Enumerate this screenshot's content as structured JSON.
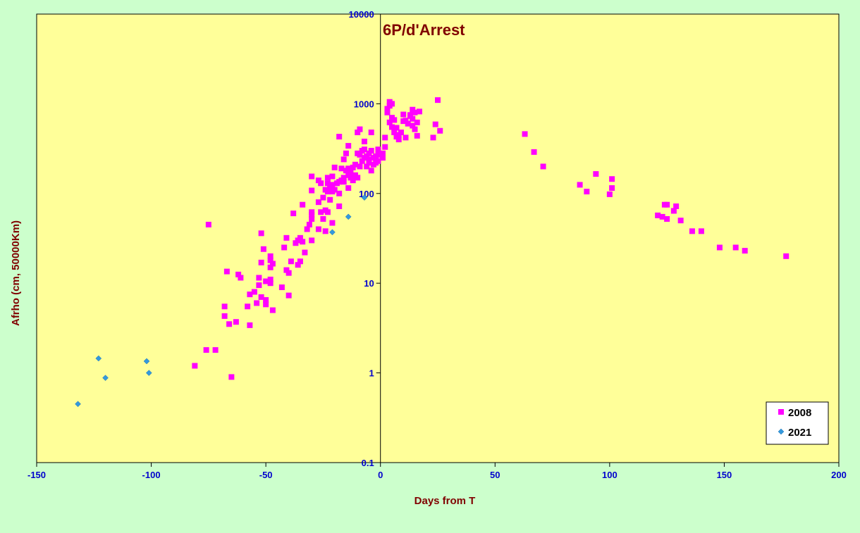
{
  "chart_data": {
    "type": "scatter",
    "title": "6P/d'Arrest",
    "xlabel": "Days from T",
    "ylabel": "Afrho (cm, 50000Km)",
    "xlim": [
      -150,
      200
    ],
    "ylim": [
      0.1,
      10000
    ],
    "yscale": "log",
    "x_ticks": [
      -150,
      -100,
      -50,
      0,
      50,
      100,
      150,
      200
    ],
    "x_tick_labels": [
      "-150",
      "-100",
      "-50",
      "0",
      "50",
      "100",
      "150",
      "200"
    ],
    "y_ticks": [
      0.1,
      1,
      10,
      100,
      1000,
      10000
    ],
    "y_tick_labels": [
      "0.1",
      "1",
      "10",
      "100",
      "1000",
      "10000"
    ],
    "grid": false,
    "legend_position": "bottom-right",
    "background_color": "#ffff99",
    "outer_background_color": "#ccffcc",
    "series": [
      {
        "name": "2008",
        "marker": "square",
        "color": "#ff00ff",
        "points": [
          [
            -81,
            1.2
          ],
          [
            -76,
            1.8
          ],
          [
            -72,
            1.8
          ],
          [
            -75,
            45
          ],
          [
            -68,
            5.5
          ],
          [
            -68,
            4.3
          ],
          [
            -67,
            13.5
          ],
          [
            -66,
            3.5
          ],
          [
            -65,
            0.9
          ],
          [
            -63,
            3.7
          ],
          [
            -62,
            12.5
          ],
          [
            -61,
            11.5
          ],
          [
            -58,
            5.5
          ],
          [
            -57,
            3.4
          ],
          [
            -57,
            7.5
          ],
          [
            -55,
            8
          ],
          [
            -54,
            6
          ],
          [
            -53,
            9.5
          ],
          [
            -53,
            11.5
          ],
          [
            -52,
            7
          ],
          [
            -52,
            17
          ],
          [
            -52,
            36
          ],
          [
            -51,
            24
          ],
          [
            -50,
            6.5
          ],
          [
            -50,
            5.8
          ],
          [
            -50,
            10.5
          ],
          [
            -48,
            10
          ],
          [
            -48,
            11
          ],
          [
            -48,
            15
          ],
          [
            -48,
            18
          ],
          [
            -48,
            20
          ],
          [
            -47,
            5
          ],
          [
            -47,
            16.5
          ],
          [
            -43,
            9
          ],
          [
            -42,
            25
          ],
          [
            -41,
            14
          ],
          [
            -41,
            32
          ],
          [
            -40,
            7.3
          ],
          [
            -40,
            13
          ],
          [
            -39,
            17.5
          ],
          [
            -38,
            60
          ],
          [
            -37,
            28
          ],
          [
            -36,
            30
          ],
          [
            -36,
            16
          ],
          [
            -35,
            32
          ],
          [
            -35,
            17.5
          ],
          [
            -34,
            75
          ],
          [
            -34,
            29
          ],
          [
            -33,
            22
          ],
          [
            -32,
            40
          ],
          [
            -31,
            45
          ],
          [
            -30,
            30
          ],
          [
            -30,
            52
          ],
          [
            -30,
            58
          ],
          [
            -30,
            62
          ],
          [
            -30,
            108
          ],
          [
            -30,
            155
          ],
          [
            -27,
            40
          ],
          [
            -27,
            80
          ],
          [
            -27,
            140
          ],
          [
            -26,
            130
          ],
          [
            -26,
            62
          ],
          [
            -25,
            52
          ],
          [
            -25,
            90
          ],
          [
            -24,
            38
          ],
          [
            -24,
            65
          ],
          [
            -24,
            110
          ],
          [
            -23,
            130
          ],
          [
            -23,
            150
          ],
          [
            -23,
            62
          ],
          [
            -23,
            105
          ],
          [
            -22,
            115
          ],
          [
            -22,
            120
          ],
          [
            -22,
            85
          ],
          [
            -21,
            155
          ],
          [
            -21,
            105
          ],
          [
            -21,
            125
          ],
          [
            -21,
            47
          ],
          [
            -20,
            195
          ],
          [
            -20,
            110
          ],
          [
            -19,
            130
          ],
          [
            -18,
            135
          ],
          [
            -18,
            100
          ],
          [
            -18,
            72
          ],
          [
            -18,
            430
          ],
          [
            -17,
            140
          ],
          [
            -17,
            190
          ],
          [
            -16,
            150
          ],
          [
            -16,
            240
          ],
          [
            -16,
            135
          ],
          [
            -15,
            280
          ],
          [
            -15,
            180
          ],
          [
            -14,
            160
          ],
          [
            -14,
            340
          ],
          [
            -14,
            115
          ],
          [
            -14,
            190
          ],
          [
            -13,
            170
          ],
          [
            -13,
            150
          ],
          [
            -12,
            195
          ],
          [
            -12,
            140
          ],
          [
            -11,
            160
          ],
          [
            -11,
            210
          ],
          [
            -10,
            280
          ],
          [
            -10,
            480
          ],
          [
            -10,
            150
          ],
          [
            -9,
            200
          ],
          [
            -9,
            270
          ],
          [
            -9,
            520
          ],
          [
            -8,
            230
          ],
          [
            -8,
            300
          ],
          [
            -7,
            250
          ],
          [
            -7,
            380
          ],
          [
            -7,
            310
          ],
          [
            -6,
            260
          ],
          [
            -6,
            200
          ],
          [
            -5,
            220
          ],
          [
            -5,
            280
          ],
          [
            -5,
            240
          ],
          [
            -4,
            480
          ],
          [
            -4,
            180
          ],
          [
            -4,
            300
          ],
          [
            -3,
            210
          ],
          [
            -3,
            250
          ],
          [
            -2,
            220
          ],
          [
            -2,
            260
          ],
          [
            -1,
            270
          ],
          [
            -1,
            310
          ],
          [
            -1,
            230
          ],
          [
            1,
            250
          ],
          [
            1,
            280
          ],
          [
            2,
            420
          ],
          [
            2,
            330
          ],
          [
            3,
            800
          ],
          [
            3,
            880
          ],
          [
            4,
            620
          ],
          [
            4,
            950
          ],
          [
            4,
            1050
          ],
          [
            5,
            700
          ],
          [
            5,
            550
          ],
          [
            5,
            1000
          ],
          [
            6,
            480
          ],
          [
            6,
            660
          ],
          [
            7,
            540
          ],
          [
            7,
            430
          ],
          [
            8,
            450
          ],
          [
            8,
            400
          ],
          [
            9,
            480
          ],
          [
            10,
            640
          ],
          [
            10,
            760
          ],
          [
            11,
            420
          ],
          [
            11,
            650
          ],
          [
            12,
            600
          ],
          [
            13,
            730
          ],
          [
            13,
            750
          ],
          [
            14,
            680
          ],
          [
            14,
            570
          ],
          [
            14,
            860
          ],
          [
            15,
            520
          ],
          [
            15,
            800
          ],
          [
            16,
            440
          ],
          [
            16,
            620
          ],
          [
            17,
            820
          ],
          [
            23,
            420
          ],
          [
            24,
            590
          ],
          [
            25,
            1100
          ],
          [
            26,
            500
          ],
          [
            63,
            460
          ],
          [
            67,
            290
          ],
          [
            71,
            200
          ],
          [
            87,
            125
          ],
          [
            90,
            105
          ],
          [
            94,
            165
          ],
          [
            100,
            98
          ],
          [
            101,
            145
          ],
          [
            101,
            115
          ],
          [
            121,
            57
          ],
          [
            123,
            55
          ],
          [
            124,
            75
          ],
          [
            125,
            75
          ],
          [
            125,
            52
          ],
          [
            128,
            64
          ],
          [
            129,
            72
          ],
          [
            131,
            50
          ],
          [
            136,
            38
          ],
          [
            140,
            38
          ],
          [
            148,
            25
          ],
          [
            155,
            25
          ],
          [
            159,
            23
          ],
          [
            177,
            20
          ]
        ]
      },
      {
        "name": "2021",
        "marker": "diamond",
        "color": "#3399dd",
        "points": [
          [
            -132,
            0.45
          ],
          [
            -123,
            1.45
          ],
          [
            -120,
            0.88
          ],
          [
            -102,
            1.35
          ],
          [
            -101,
            1.0
          ],
          [
            -21,
            37
          ],
          [
            -14,
            55
          ],
          [
            -7,
            90
          ]
        ]
      }
    ]
  }
}
